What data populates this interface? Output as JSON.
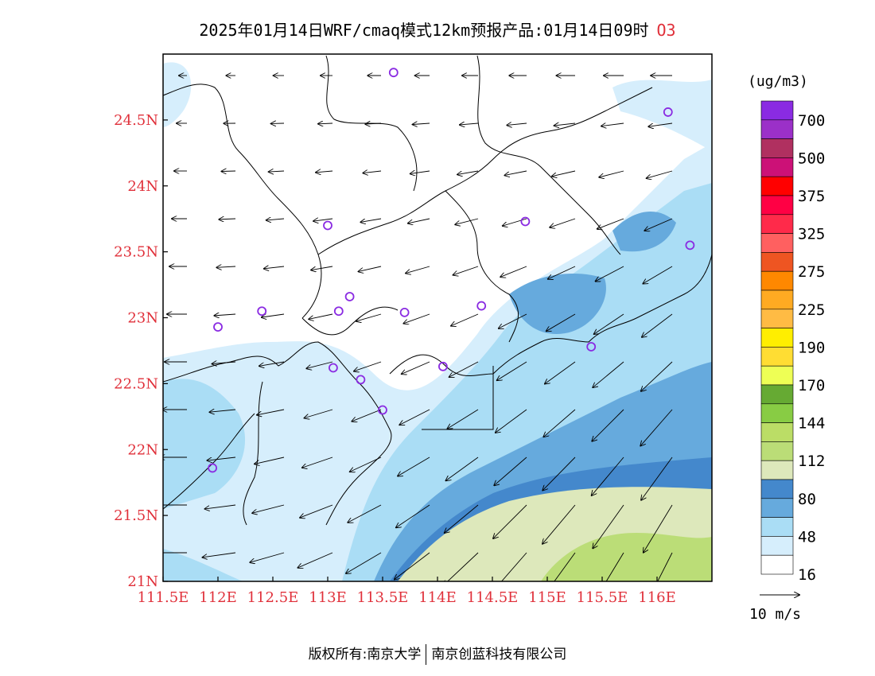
{
  "title": {
    "main": "2025年01月14日WRF/cmaq模式12km预报产品:01月14日09时",
    "species": "O3"
  },
  "footer": {
    "left": "版权所有:南京大学",
    "right": "南京创蓝科技有限公司"
  },
  "map": {
    "lon_range": [
      111.5,
      116.5
    ],
    "lat_range": [
      21,
      25
    ],
    "lon_ticks": [
      "111.5E",
      "112E",
      "112.5E",
      "113E",
      "113.5E",
      "114E",
      "114.5E",
      "115E",
      "115.5E",
      "116E"
    ],
    "lat_ticks": [
      "21N",
      "21.5N",
      "22N",
      "22.5N",
      "23N",
      "23.5N",
      "24N",
      "24.5N"
    ],
    "tick_color": "#e0303a",
    "stations_color": "#8a2be2"
  },
  "colorbar": {
    "unit": "(ug/m3)",
    "labels": [
      "700",
      "500",
      "375",
      "325",
      "275",
      "225",
      "190",
      "170",
      "144",
      "112",
      "80",
      "48",
      "16"
    ],
    "colors_top_to_bottom": [
      "#8a2be2",
      "#9b30c8",
      "#b03060",
      "#cc1177",
      "#ff0000",
      "#ff0044",
      "#ff2a4a",
      "#ff6060",
      "#ee5522",
      "#ff8800",
      "#ffaa22",
      "#ffbb44",
      "#ffee00",
      "#ffdd33",
      "#eeff55",
      "#66aa33",
      "#88cc44",
      "#bbdd66",
      "#bbdd77",
      "#dde8bb",
      "#4488cc",
      "#66aadd",
      "#aaddf5",
      "#d6eefc",
      "#ffffff"
    ]
  },
  "wind_legend": {
    "label": "10 m/s"
  }
}
